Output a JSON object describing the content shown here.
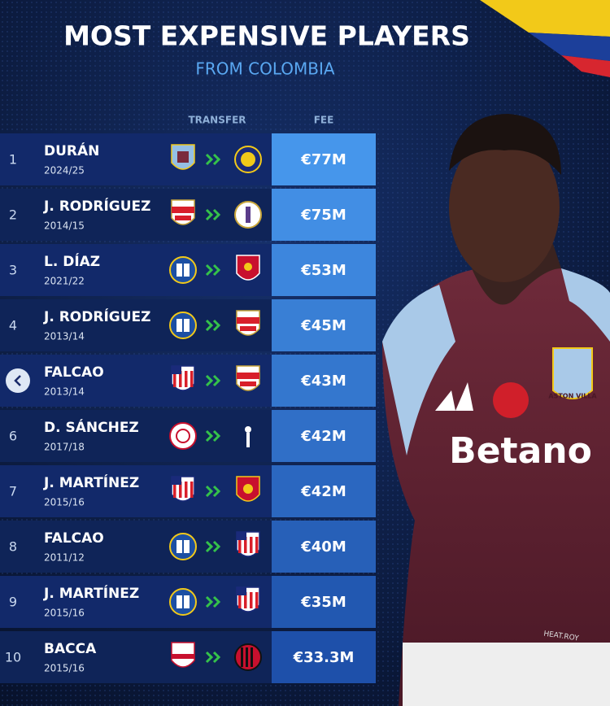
{
  "header": {
    "title": "MOST EXPENSIVE PLAYERS",
    "subtitle": "FROM COLOMBIA"
  },
  "table": {
    "columns": [
      "TRANSFER",
      "FEE"
    ],
    "rows": [
      {
        "rank": 1,
        "name": "DURÁN",
        "season": "2024/25",
        "fee": "€77M"
      },
      {
        "rank": 2,
        "name": "J. RODRÍGUEZ",
        "season": "2014/15",
        "fee": "€75M"
      },
      {
        "rank": 3,
        "name": "L. DÍAZ",
        "season": "2021/22",
        "fee": "€53M"
      },
      {
        "rank": 4,
        "name": "J. RODRÍGUEZ",
        "season": "2013/14",
        "fee": "€45M"
      },
      {
        "rank": null,
        "name": "FALCAO",
        "season": "2013/14",
        "fee": "€43M"
      },
      {
        "rank": 6,
        "name": "D. SÁNCHEZ",
        "season": "2017/18",
        "fee": "€42M"
      },
      {
        "rank": 7,
        "name": "J. MARTÍNEZ",
        "season": "2015/16",
        "fee": "€42M"
      },
      {
        "rank": 8,
        "name": "FALCAO",
        "season": "2011/12",
        "fee": "€40M"
      },
      {
        "rank": 9,
        "name": "J. MARTÍNEZ",
        "season": "2015/16",
        "fee": "€35M"
      },
      {
        "rank": 10,
        "name": "BACCA",
        "season": "2015/16",
        "fee": "€33.3M"
      }
    ]
  },
  "photo": {
    "sponsor": "Betano",
    "badge": "ASTON VILLA",
    "kit_mark": "HEAT.ROY"
  }
}
